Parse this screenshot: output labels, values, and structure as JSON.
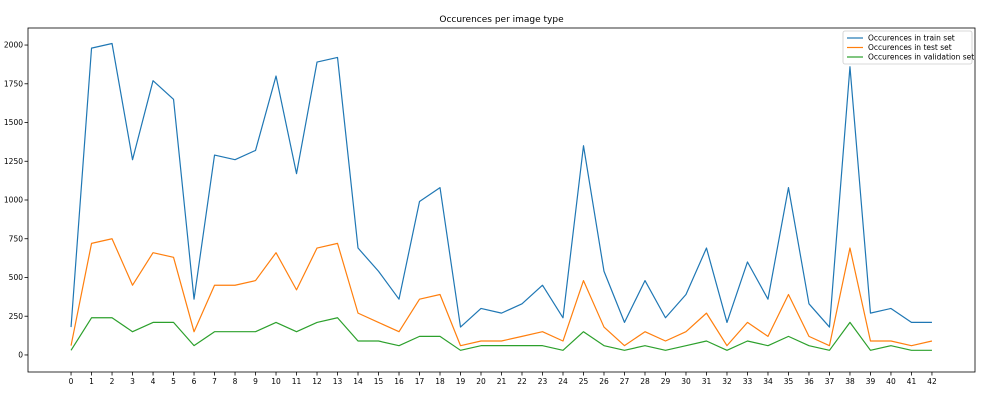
{
  "chart_data": {
    "type": "line",
    "title": "Occurences per image type",
    "xlabel": "",
    "ylabel": "",
    "x": [
      0,
      1,
      2,
      3,
      4,
      5,
      6,
      7,
      8,
      9,
      10,
      11,
      12,
      13,
      14,
      15,
      16,
      17,
      18,
      19,
      20,
      21,
      22,
      23,
      24,
      25,
      26,
      27,
      28,
      29,
      30,
      31,
      32,
      33,
      34,
      35,
      36,
      37,
      38,
      39,
      40,
      41,
      42
    ],
    "xticks": [
      "0",
      "1",
      "2",
      "3",
      "4",
      "5",
      "6",
      "7",
      "8",
      "9",
      "10",
      "11",
      "12",
      "13",
      "14",
      "15",
      "16",
      "17",
      "18",
      "19",
      "20",
      "21",
      "22",
      "23",
      "24",
      "25",
      "26",
      "27",
      "28",
      "29",
      "30",
      "31",
      "32",
      "33",
      "34",
      "35",
      "36",
      "37",
      "38",
      "39",
      "40",
      "41",
      "42"
    ],
    "yticks": [
      0,
      250,
      500,
      750,
      1000,
      1250,
      1500,
      1750,
      2000
    ],
    "ytick_labels": [
      "0",
      "250",
      "500",
      "750",
      "1000",
      "1250",
      "1500",
      "1750",
      "2000"
    ],
    "ylim": [
      -110,
      2110
    ],
    "xlim": [
      -2.1,
      44.1
    ],
    "grid": false,
    "legend_position": "top-right",
    "series": [
      {
        "name": "Occurences in train set",
        "color": "#1f77b4",
        "values": [
          180,
          1980,
          2010,
          1260,
          1770,
          1650,
          360,
          1290,
          1260,
          1320,
          1800,
          1170,
          1890,
          1920,
          690,
          540,
          360,
          990,
          1080,
          180,
          300,
          270,
          330,
          450,
          240,
          1350,
          540,
          210,
          480,
          240,
          390,
          690,
          210,
          600,
          360,
          1080,
          330,
          180,
          1860,
          270,
          300,
          210,
          210
        ]
      },
      {
        "name": "Occurences in test set",
        "color": "#ff7f0e",
        "values": [
          60,
          720,
          750,
          450,
          660,
          630,
          150,
          450,
          450,
          480,
          660,
          420,
          690,
          720,
          270,
          210,
          150,
          360,
          390,
          60,
          90,
          90,
          120,
          150,
          90,
          480,
          180,
          60,
          150,
          90,
          150,
          270,
          60,
          210,
          120,
          390,
          120,
          60,
          690,
          90,
          90,
          60,
          90
        ]
      },
      {
        "name": "Occurences in validation set",
        "color": "#2ca02c",
        "values": [
          30,
          240,
          240,
          150,
          210,
          210,
          60,
          150,
          150,
          150,
          210,
          150,
          210,
          240,
          90,
          90,
          60,
          120,
          120,
          30,
          60,
          60,
          60,
          60,
          30,
          150,
          60,
          30,
          60,
          30,
          60,
          90,
          30,
          90,
          60,
          120,
          60,
          30,
          210,
          30,
          60,
          30,
          30
        ]
      }
    ]
  }
}
